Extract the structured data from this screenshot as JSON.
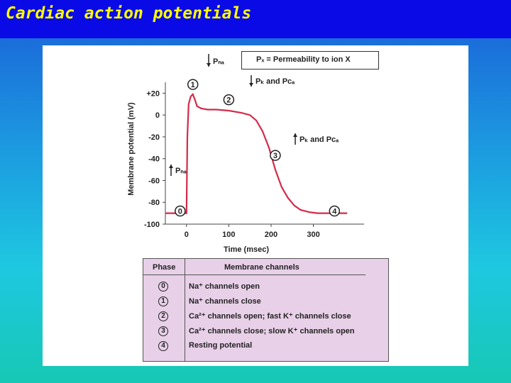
{
  "slide": {
    "title": "Cardiac action potentials"
  },
  "legend": {
    "text": "Pₓ = Permeability to ion X"
  },
  "chart_data": {
    "type": "line",
    "title": "",
    "xlabel": "Time (msec)",
    "ylabel": "Membrane potential (mV)",
    "xlim": [
      -50,
      420
    ],
    "ylim": [
      -100,
      30
    ],
    "x_ticks": [
      0,
      100,
      200,
      300
    ],
    "x_tick_labels": [
      "0",
      "100",
      "200",
      "300"
    ],
    "y_ticks": [
      20,
      0,
      -20,
      -40,
      -60,
      -80,
      -100
    ],
    "y_tick_labels": [
      "+20",
      "0",
      "-20",
      "-40",
      "-60",
      "-80",
      "-100"
    ],
    "series": [
      {
        "color": "#d42a4a",
        "x": [
          -50,
          0,
          2,
          5,
          10,
          15,
          20,
          25,
          35,
          50,
          70,
          100,
          130,
          150,
          165,
          180,
          195,
          210,
          225,
          240,
          255,
          270,
          290,
          310,
          330,
          350,
          380
        ],
        "y": [
          -90,
          -90,
          -20,
          10,
          17,
          19,
          14,
          8,
          6,
          5,
          5,
          4,
          2,
          0,
          -5,
          -15,
          -30,
          -50,
          -66,
          -76,
          -83,
          -87,
          -89,
          -90,
          -90,
          -90,
          -90
        ]
      }
    ],
    "annotations": [
      {
        "id": "0",
        "label": "0",
        "x": -15,
        "y": -88
      },
      {
        "id": "1",
        "label": "1",
        "x": 15,
        "y": 28
      },
      {
        "id": "2",
        "label": "2",
        "x": 100,
        "y": 14
      },
      {
        "id": "3",
        "label": "3",
        "x": 210,
        "y": -37
      },
      {
        "id": "4",
        "label": "4",
        "x": 350,
        "y": -88
      }
    ],
    "arrow_labels": [
      {
        "id": "pna-down",
        "text": "Pₙₐ",
        "direction": "down"
      },
      {
        "id": "pk-pca-2",
        "text": "Pₖ and Pᴄₐ",
        "direction": "down-up"
      },
      {
        "id": "pk-pca-3",
        "text": "Pₖ and Pᴄₐ",
        "direction": "up-down"
      },
      {
        "id": "pna-up",
        "text": "Pₙₐ",
        "direction": "up"
      }
    ]
  },
  "table": {
    "header_phase": "Phase",
    "header_channels": "Membrane channels",
    "rows": [
      {
        "phase": "0",
        "channels": "Na⁺ channels open"
      },
      {
        "phase": "1",
        "channels": "Na⁺ channels close"
      },
      {
        "phase": "2",
        "channels": "Ca²⁺ channels open; fast K⁺ channels close"
      },
      {
        "phase": "3",
        "channels": "Ca²⁺ channels close; slow K⁺ channels open"
      },
      {
        "phase": "4",
        "channels": "Resting potential"
      }
    ]
  }
}
